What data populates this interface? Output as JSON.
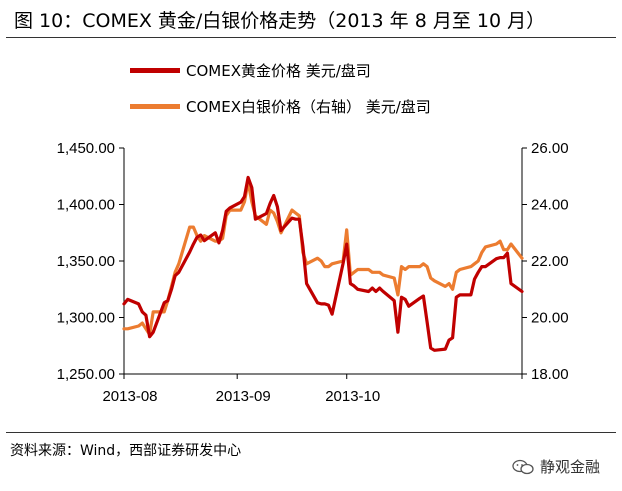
{
  "title": "图 10：COMEX 黄金/白银价格走势（2013 年 8 月至 10 月）",
  "source": "资料来源：Wind，西部证券研发中心",
  "watermark": "静观金融",
  "chart_data": {
    "type": "line",
    "title": "",
    "xlabel": "",
    "ylabel": "",
    "x_tick_labels": [
      "2013-08",
      "2013-09",
      "2013-10"
    ],
    "y_left": {
      "range": [
        1250,
        1450
      ],
      "ticks": [
        "1,250.00",
        "1,300.00",
        "1,350.00",
        "1,400.00",
        "1,450.00"
      ]
    },
    "y_right": {
      "range": [
        18,
        26
      ],
      "ticks": [
        "18.00",
        "20.00",
        "22.00",
        "24.00",
        "26.00"
      ]
    },
    "legend_position": "top-left",
    "grid": false,
    "series": [
      {
        "name": "COMEX黄金价格 美元/盘司",
        "axis": "left",
        "color": "#c00000",
        "values": [
          [
            "2013-08-01",
            1312
          ],
          [
            "2013-08-02",
            1316
          ],
          [
            "2013-08-05",
            1312
          ],
          [
            "2013-08-06",
            1305
          ],
          [
            "2013-08-07",
            1302
          ],
          [
            "2013-08-08",
            1283
          ],
          [
            "2013-08-09",
            1287
          ],
          [
            "2013-08-12",
            1313
          ],
          [
            "2013-08-13",
            1315
          ],
          [
            "2013-08-14",
            1325
          ],
          [
            "2013-08-15",
            1337
          ],
          [
            "2013-08-16",
            1340
          ],
          [
            "2013-08-19",
            1358
          ],
          [
            "2013-08-20",
            1365
          ],
          [
            "2013-08-21",
            1371
          ],
          [
            "2013-08-22",
            1373
          ],
          [
            "2013-08-23",
            1368
          ],
          [
            "2013-08-26",
            1375
          ],
          [
            "2013-08-27",
            1366
          ],
          [
            "2013-08-28",
            1377
          ],
          [
            "2013-08-29",
            1394
          ],
          [
            "2013-08-30",
            1397
          ],
          [
            "2013-09-02",
            1402
          ],
          [
            "2013-09-03",
            1407
          ],
          [
            "2013-09-04",
            1424
          ],
          [
            "2013-09-05",
            1415
          ],
          [
            "2013-09-06",
            1387
          ],
          [
            "2013-09-09",
            1392
          ],
          [
            "2013-09-10",
            1401
          ],
          [
            "2013-09-11",
            1408
          ],
          [
            "2013-09-12",
            1398
          ],
          [
            "2013-09-13",
            1377
          ],
          [
            "2013-09-16",
            1388
          ],
          [
            "2013-09-17",
            1387
          ],
          [
            "2013-09-18",
            1387
          ],
          [
            "2013-09-19",
            1363
          ],
          [
            "2013-09-20",
            1330
          ],
          [
            "2013-09-23",
            1313
          ],
          [
            "2013-09-24",
            1312
          ],
          [
            "2013-09-25",
            1312
          ],
          [
            "2013-09-26",
            1311
          ],
          [
            "2013-09-27",
            1303
          ],
          [
            "2013-09-30",
            1348
          ],
          [
            "2013-10-01",
            1365
          ],
          [
            "2013-10-02",
            1330
          ],
          [
            "2013-10-03",
            1328
          ],
          [
            "2013-10-04",
            1325
          ],
          [
            "2013-10-07",
            1323
          ],
          [
            "2013-10-08",
            1326
          ],
          [
            "2013-10-09",
            1323
          ],
          [
            "2013-10-10",
            1326
          ],
          [
            "2013-10-11",
            1323
          ],
          [
            "2013-10-14",
            1315
          ],
          [
            "2013-10-15",
            1287
          ],
          [
            "2013-10-16",
            1318
          ],
          [
            "2013-10-17",
            1316
          ],
          [
            "2013-10-18",
            1310
          ],
          [
            "2013-10-21",
            1317
          ],
          [
            "2013-10-22",
            1319
          ],
          [
            "2013-10-23",
            1296
          ],
          [
            "2013-10-24",
            1273
          ],
          [
            "2013-10-25",
            1271
          ],
          [
            "2013-10-28",
            1272
          ],
          [
            "2013-10-29",
            1280
          ],
          [
            "2013-10-30",
            1282
          ],
          [
            "2013-10-31",
            1318
          ],
          [
            "2013-11-01",
            1320
          ],
          [
            "2013-11-04",
            1320
          ],
          [
            "2013-11-05",
            1334
          ],
          [
            "2013-11-06",
            1340
          ],
          [
            "2013-11-07",
            1345
          ],
          [
            "2013-11-08",
            1345
          ],
          [
            "2013-11-11",
            1352
          ],
          [
            "2013-11-12",
            1353
          ],
          [
            "2013-11-13",
            1353
          ],
          [
            "2013-11-14",
            1357
          ],
          [
            "2013-11-15",
            1330
          ],
          [
            "2013-11-18",
            1323
          ]
        ]
      },
      {
        "name": "COMEX白银价格（右轴） 美元/盘司",
        "axis": "right",
        "color": "#ec7c30",
        "values": [
          [
            "2013-08-01",
            19.6
          ],
          [
            "2013-08-02",
            19.6
          ],
          [
            "2013-08-05",
            19.7
          ],
          [
            "2013-08-06",
            19.8
          ],
          [
            "2013-08-07",
            19.6
          ],
          [
            "2013-08-08",
            19.4
          ],
          [
            "2013-08-09",
            20.2
          ],
          [
            "2013-08-12",
            20.2
          ],
          [
            "2013-08-13",
            20.6
          ],
          [
            "2013-08-14",
            21.1
          ],
          [
            "2013-08-15",
            21.6
          ],
          [
            "2013-08-16",
            21.9
          ],
          [
            "2013-08-19",
            23.2
          ],
          [
            "2013-08-20",
            23.2
          ],
          [
            "2013-08-21",
            22.9
          ],
          [
            "2013-08-22",
            22.7
          ],
          [
            "2013-08-23",
            22.9
          ],
          [
            "2013-08-26",
            22.7
          ],
          [
            "2013-08-27",
            22.7
          ],
          [
            "2013-08-28",
            22.8
          ],
          [
            "2013-08-29",
            23.6
          ],
          [
            "2013-08-30",
            23.8
          ],
          [
            "2013-09-02",
            23.8
          ],
          [
            "2013-09-03",
            24.1
          ],
          [
            "2013-09-04",
            24.8
          ],
          [
            "2013-09-05",
            24.1
          ],
          [
            "2013-09-06",
            23.6
          ],
          [
            "2013-09-09",
            23.3
          ],
          [
            "2013-09-10",
            23.8
          ],
          [
            "2013-09-11",
            23.7
          ],
          [
            "2013-09-12",
            23.4
          ],
          [
            "2013-09-13",
            23.0
          ],
          [
            "2013-09-16",
            23.8
          ],
          [
            "2013-09-17",
            23.7
          ],
          [
            "2013-09-18",
            23.6
          ],
          [
            "2013-09-19",
            22.3
          ],
          [
            "2013-09-20",
            21.9
          ],
          [
            "2013-09-23",
            22.1
          ],
          [
            "2013-09-24",
            22.0
          ],
          [
            "2013-09-25",
            21.8
          ],
          [
            "2013-09-26",
            21.8
          ],
          [
            "2013-09-27",
            21.9
          ],
          [
            "2013-09-30",
            22.0
          ],
          [
            "2013-10-01",
            23.1
          ],
          [
            "2013-10-02",
            21.5
          ],
          [
            "2013-10-03",
            21.6
          ],
          [
            "2013-10-04",
            21.7
          ],
          [
            "2013-10-07",
            21.7
          ],
          [
            "2013-10-08",
            21.6
          ],
          [
            "2013-10-09",
            21.6
          ],
          [
            "2013-10-10",
            21.6
          ],
          [
            "2013-10-11",
            21.5
          ],
          [
            "2013-10-14",
            21.4
          ],
          [
            "2013-10-15",
            20.8
          ],
          [
            "2013-10-16",
            21.8
          ],
          [
            "2013-10-17",
            21.7
          ],
          [
            "2013-10-18",
            21.8
          ],
          [
            "2013-10-21",
            21.8
          ],
          [
            "2013-10-22",
            21.9
          ],
          [
            "2013-10-23",
            21.8
          ],
          [
            "2013-10-24",
            21.4
          ],
          [
            "2013-10-25",
            21.3
          ],
          [
            "2013-10-28",
            21.1
          ],
          [
            "2013-10-29",
            21.2
          ],
          [
            "2013-10-30",
            21.0
          ],
          [
            "2013-10-31",
            21.6
          ],
          [
            "2013-11-01",
            21.7
          ],
          [
            "2013-11-04",
            21.8
          ],
          [
            "2013-11-05",
            21.9
          ],
          [
            "2013-11-06",
            22.0
          ],
          [
            "2013-11-07",
            22.3
          ],
          [
            "2013-11-08",
            22.5
          ],
          [
            "2013-11-11",
            22.6
          ],
          [
            "2013-11-12",
            22.7
          ],
          [
            "2013-11-13",
            22.4
          ],
          [
            "2013-11-14",
            22.4
          ],
          [
            "2013-11-15",
            22.6
          ],
          [
            "2013-11-18",
            22.1
          ]
        ]
      }
    ]
  }
}
